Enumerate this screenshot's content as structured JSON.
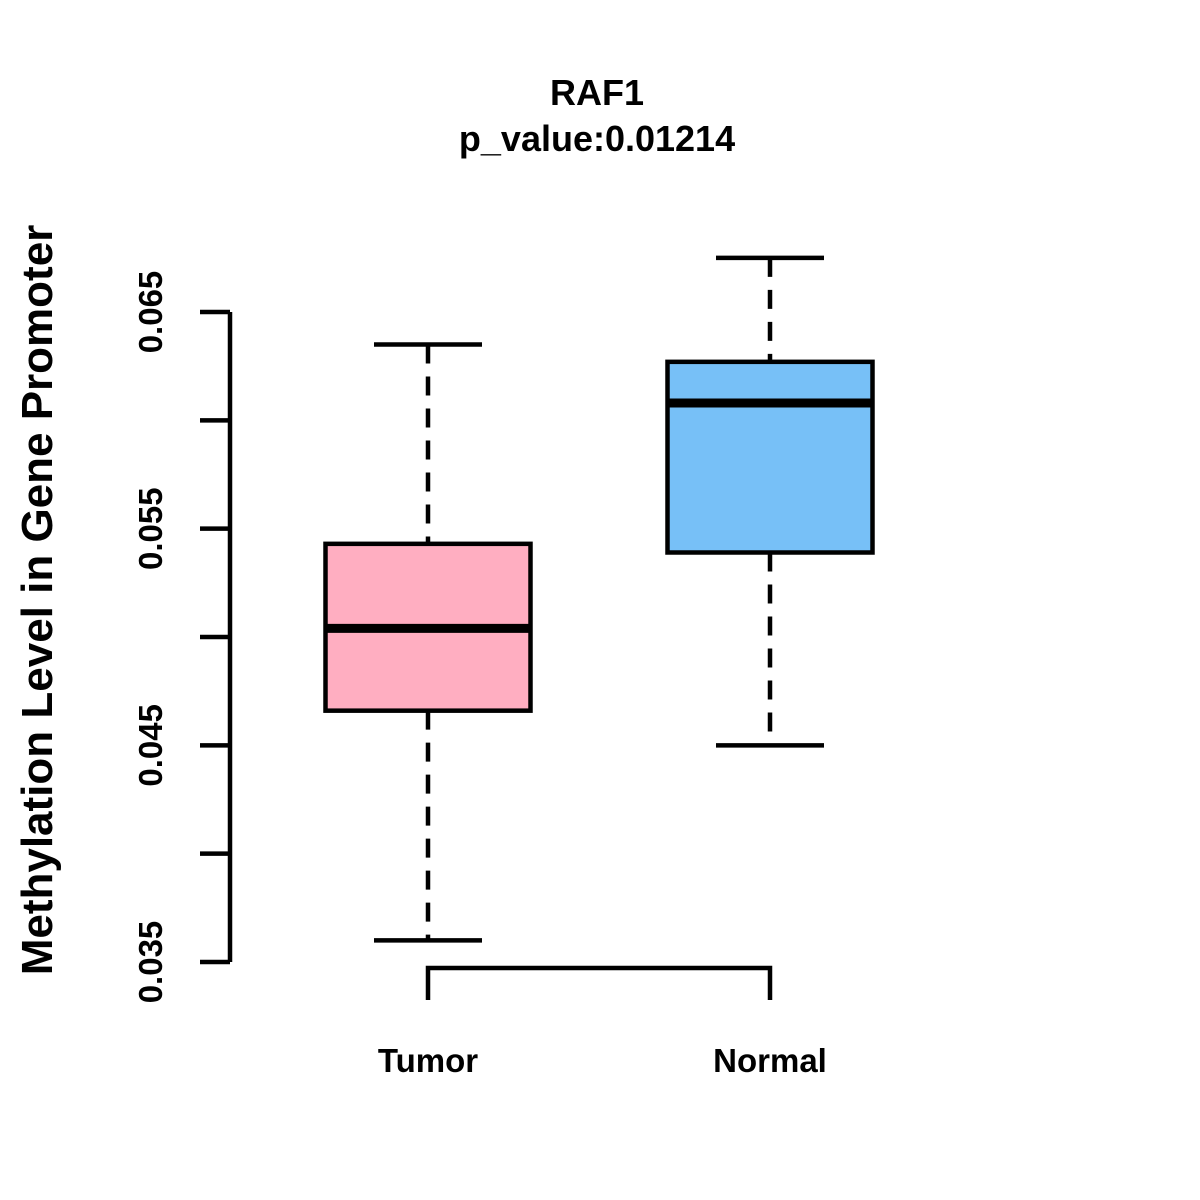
{
  "figure": {
    "background": "#FFFFFF",
    "foreground": "#000000"
  },
  "chart_data": {
    "type": "boxplot",
    "title": "RAF1",
    "subtitle": "p_value:0.01214",
    "ylabel": "Methylation Level in Gene Promoter",
    "xlabel": "",
    "categories": [
      "Tumor",
      "Normal"
    ],
    "series": [
      {
        "name": "Tumor",
        "color": "#FFAEC1",
        "lower_whisker": 0.036,
        "q1": 0.0466,
        "median": 0.0504,
        "q3": 0.0543,
        "upper_whisker": 0.0635
      },
      {
        "name": "Normal",
        "color": "#77C0F7",
        "lower_whisker": 0.045,
        "q1": 0.0539,
        "median": 0.0608,
        "q3": 0.0627,
        "upper_whisker": 0.0675
      }
    ],
    "ylim": [
      0.035,
      0.065
    ],
    "yticks": [
      0.035,
      0.04,
      0.045,
      0.05,
      0.055,
      0.06,
      0.065
    ],
    "ytick_labels": [
      "0.035",
      "",
      "0.045",
      "",
      "0.055",
      "",
      "0.065"
    ],
    "grid": false,
    "legend": null,
    "box_edge_color": "#000000",
    "median_color": "#000000",
    "whisker_style": "dashed"
  }
}
